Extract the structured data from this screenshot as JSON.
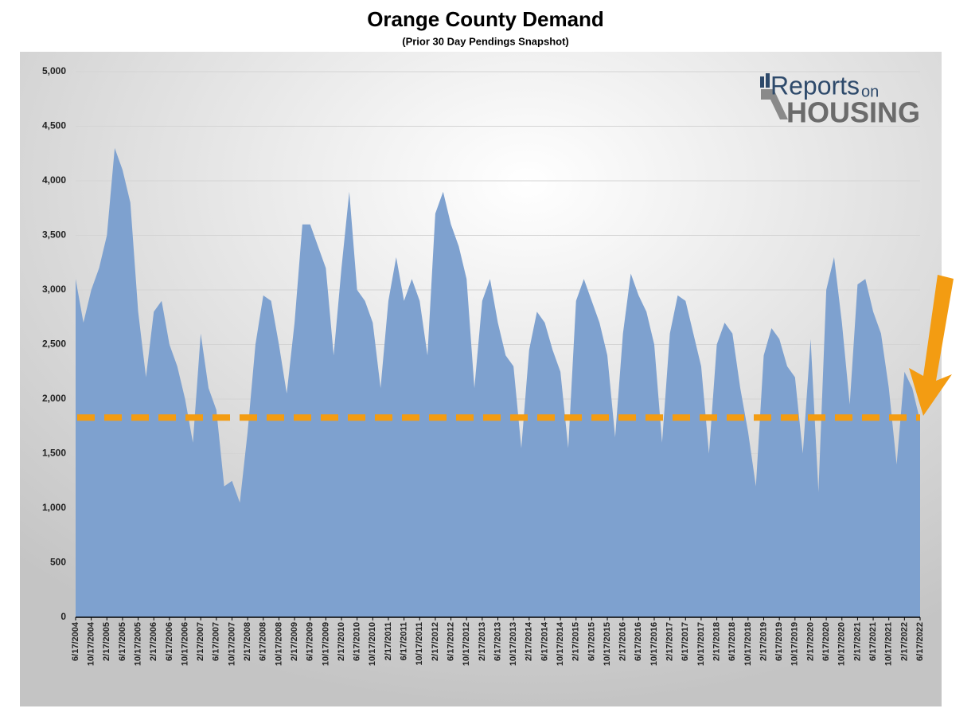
{
  "chart_data": {
    "type": "area",
    "title": "Orange County Demand",
    "subtitle": "(Prior 30 Day Pendings Snapshot)",
    "logo_text": [
      "Reports",
      "on",
      "HOUSING"
    ],
    "color": "#7ea1cf",
    "reference_line": 1830,
    "reference_color": "#f39c12",
    "grid": true,
    "ylim": [
      0,
      5000
    ],
    "yticks": [
      0,
      500,
      {
        "value": 1000,
        "label": "1,000"
      },
      {
        "value": 1500,
        "label": "1,500"
      },
      {
        "value": 2000,
        "label": "2,000"
      },
      {
        "value": 2500,
        "label": "2,500"
      },
      {
        "value": 3000,
        "label": "3,000"
      },
      {
        "value": 3500,
        "label": "3,500"
      },
      {
        "value": 4000,
        "label": "4,000"
      },
      {
        "value": 4500,
        "label": "4,500"
      },
      {
        "value": 5000,
        "label": "5,000"
      }
    ],
    "categories": [
      "6/17/2004",
      null,
      "10/17/2004",
      null,
      "2/17/2005",
      null,
      "6/17/2005",
      null,
      "10/17/2005",
      null,
      "2/17/2006",
      null,
      "6/17/2006",
      null,
      "10/17/2006",
      null,
      "2/17/2007",
      null,
      "6/17/2007",
      null,
      "10/17/2007",
      null,
      "2/17/2008",
      null,
      "6/17/2008",
      null,
      "10/17/2008",
      null,
      "2/17/2009",
      null,
      "6/17/2009",
      null,
      "10/17/2009",
      null,
      "2/17/2010",
      null,
      "6/17/2010",
      null,
      "10/17/2010",
      null,
      "2/17/2011",
      null,
      "6/17/2011",
      null,
      "10/17/2011",
      null,
      "2/17/2012",
      null,
      "6/17/2012",
      null,
      "10/17/2012",
      null,
      "2/17/2013",
      null,
      "6/17/2013",
      null,
      "10/17/2013",
      null,
      "2/17/2014",
      null,
      "6/17/2014",
      null,
      "10/17/2014",
      null,
      "2/17/2015",
      null,
      "6/17/2015",
      null,
      "10/17/2015",
      null,
      "2/17/2016",
      null,
      "6/17/2016",
      null,
      "10/17/2016",
      null,
      "2/17/2017",
      null,
      "6/17/2017",
      null,
      "10/17/2017",
      null,
      "2/17/2018",
      null,
      "6/17/2018",
      null,
      "10/17/2018",
      null,
      "2/17/2019",
      null,
      "6/17/2019",
      null,
      "10/17/2019",
      null,
      "2/17/2020",
      null,
      "6/17/2020",
      null,
      "10/17/2020",
      null,
      "2/17/2021",
      null,
      "6/17/2021",
      null,
      "10/17/2021",
      null,
      "2/17/2022",
      null,
      "6/17/2022"
    ],
    "values": [
      3100,
      2700,
      3000,
      3200,
      3500,
      4300,
      4100,
      3800,
      2800,
      2200,
      2800,
      2900,
      2500,
      2300,
      2000,
      1600,
      2600,
      2100,
      1900,
      1200,
      1250,
      1050,
      1700,
      2500,
      2950,
      2900,
      2500,
      2050,
      2700,
      3600,
      3600,
      3400,
      3200,
      2400,
      3200,
      3900,
      3000,
      2900,
      2700,
      2100,
      2900,
      3300,
      2900,
      3100,
      2900,
      2400,
      3700,
      3900,
      3600,
      3400,
      3100,
      2100,
      2900,
      3100,
      2700,
      2400,
      2300,
      1550,
      2450,
      2800,
      2700,
      2450,
      2250,
      1550,
      2900,
      3100,
      2900,
      2700,
      2400,
      1650,
      2600,
      3150,
      2950,
      2800,
      2500,
      1600,
      2600,
      2950,
      2900,
      2600,
      2300,
      1500,
      2500,
      2700,
      2600,
      2100,
      1700,
      1200,
      2400,
      2650,
      2550,
      2300,
      2200,
      1500,
      2550,
      1150,
      3000,
      3300,
      2700,
      1950,
      3050,
      3100,
      2800,
      2600,
      2100,
      1400,
      2250,
      2100,
      1800
    ]
  }
}
